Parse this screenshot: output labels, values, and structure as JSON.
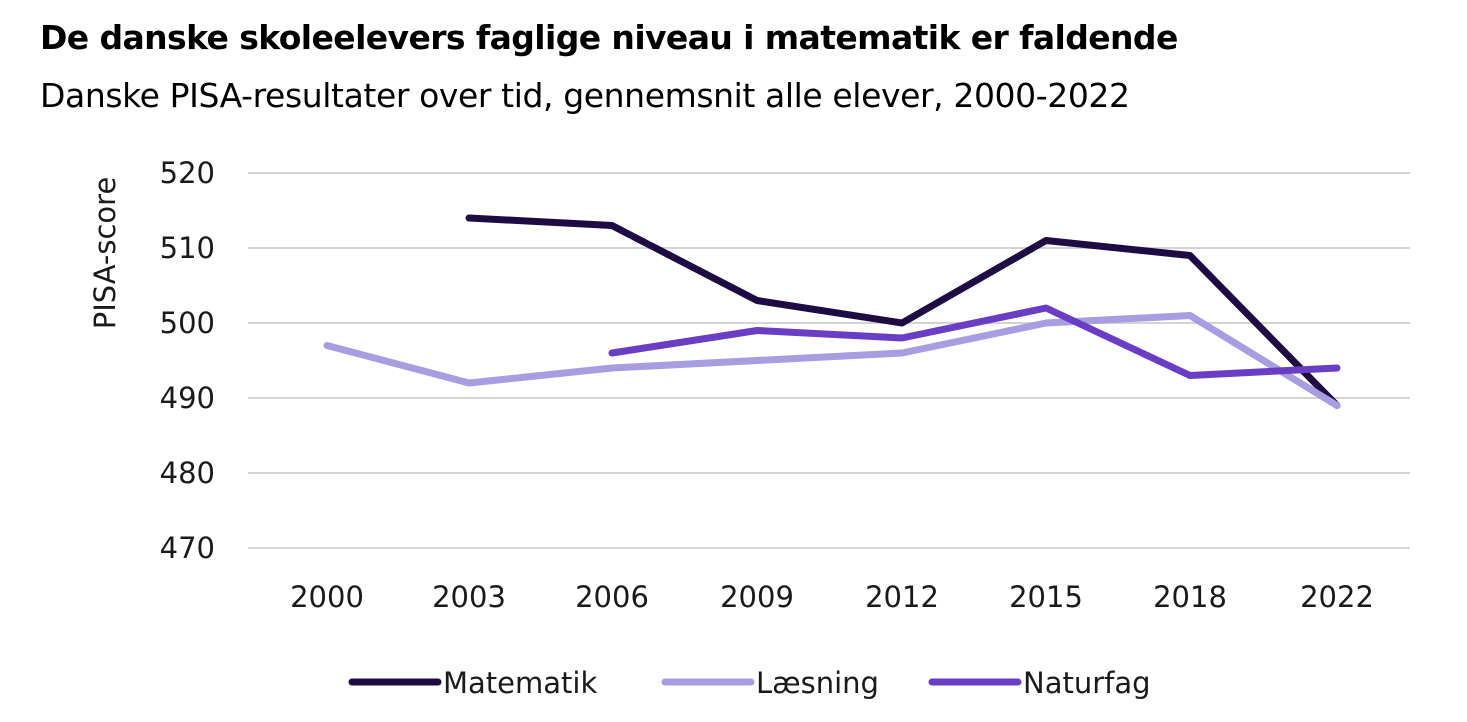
{
  "chart_data": {
    "type": "line",
    "title": "De danske skoleelevers faglige niveau i matematik er faldende",
    "subtitle": "Danske PISA-resultater over tid, gennemsnit alle elever, 2000-2022",
    "xlabel": "",
    "ylabel": "PISA-score",
    "ylim": [
      470,
      520
    ],
    "yticks": [
      520,
      510,
      500,
      490,
      480,
      470
    ],
    "categories": [
      "2000",
      "2003",
      "2006",
      "2009",
      "2012",
      "2015",
      "2018",
      "2022"
    ],
    "grid": true,
    "legend_position": "bottom",
    "series": [
      {
        "name": "Matematik",
        "color": "#1e0b44",
        "values": [
          null,
          514,
          513,
          503,
          500,
          511,
          509,
          489
        ]
      },
      {
        "name": "Læsning",
        "color": "#a69ee0",
        "values": [
          497,
          492,
          494,
          495,
          496,
          500,
          501,
          489
        ]
      },
      {
        "name": "Naturfag",
        "color": "#6a3ec4",
        "values": [
          null,
          null,
          496,
          499,
          498,
          502,
          493,
          494
        ]
      }
    ]
  }
}
